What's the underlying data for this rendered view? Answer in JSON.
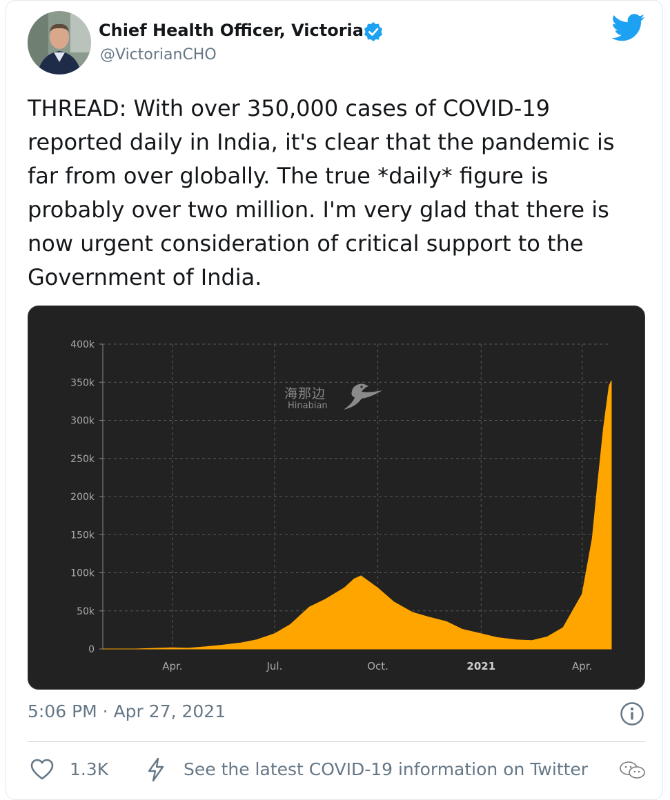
{
  "tweet": {
    "author_name": "Chief Health Officer, Victoria",
    "handle": "@VictorianCHO",
    "text": "THREAD: With over 350,000 cases of COVID-19 reported daily in India, it's clear that the pandemic is far from over globally. The true *daily* figure is probably over two million. I'm very glad that there is now urgent consideration of critical support to the Government of India.",
    "timestamp": "5:06 PM · Apr 27, 2021",
    "likes": "1.3K",
    "covid_link": "See the latest COVID-19 information on Twitter",
    "icons": [
      "verified-badge-icon",
      "twitter-bird-icon",
      "info-icon",
      "heart-icon",
      "bolt-icon",
      "wechat-icon"
    ]
  },
  "watermark": {
    "cn": "海那边",
    "en": "Hinabian"
  },
  "colors": {
    "accent": "#1da1f2",
    "bar": "#ffa500",
    "chart_bg": "#222222",
    "muted": "#657786"
  },
  "chart_data": {
    "type": "area",
    "title": "",
    "xlabel": "",
    "ylabel": "",
    "x_tick_labels": [
      "Apr.",
      "Jul.",
      "Oct.",
      "2021",
      "Apr."
    ],
    "y_tick_labels": [
      "0",
      "50k",
      "100k",
      "150k",
      "200k",
      "250k",
      "300k",
      "350k",
      "400k"
    ],
    "ylim": [
      0,
      400000
    ],
    "xlim": [
      "2020-01-30",
      "2021-04-27"
    ],
    "grid": true,
    "x": [
      "2020-01-30",
      "2020-03-01",
      "2020-04-01",
      "2020-04-15",
      "2020-05-01",
      "2020-05-15",
      "2020-06-01",
      "2020-06-15",
      "2020-07-01",
      "2020-07-15",
      "2020-08-01",
      "2020-08-15",
      "2020-09-01",
      "2020-09-10",
      "2020-09-16",
      "2020-10-01",
      "2020-10-15",
      "2020-11-01",
      "2020-11-15",
      "2020-12-01",
      "2020-12-15",
      "2021-01-01",
      "2021-01-15",
      "2021-02-01",
      "2021-02-15",
      "2021-03-01",
      "2021-03-15",
      "2021-04-01",
      "2021-04-10",
      "2021-04-15",
      "2021-04-20",
      "2021-04-25",
      "2021-04-27"
    ],
    "values": [
      0,
      100,
      1500,
      1000,
      3000,
      5000,
      8000,
      12000,
      20000,
      32000,
      55000,
      65000,
      80000,
      92000,
      96000,
      80000,
      62000,
      48000,
      42000,
      36000,
      26000,
      20000,
      15000,
      12000,
      11000,
      16000,
      28000,
      72000,
      145000,
      220000,
      290000,
      345000,
      352000
    ]
  }
}
